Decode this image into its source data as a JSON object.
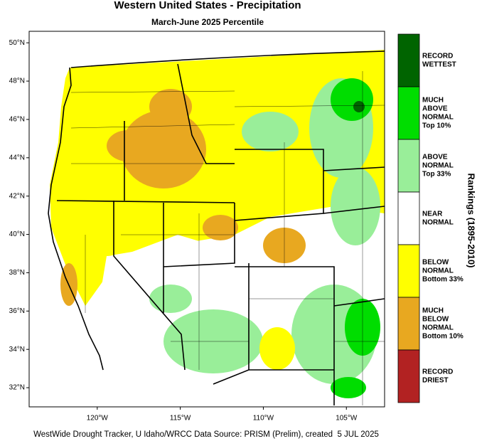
{
  "title": "Western United States - Precipitation",
  "subtitle": "March-June 2025 Percentile",
  "map": {
    "xlim": [
      -124.1,
      -102.7
    ],
    "ylim": [
      31,
      50.6
    ],
    "xticks": [
      {
        "value": -120,
        "label": "120°W"
      },
      {
        "value": -115,
        "label": "115°W"
      },
      {
        "value": -110,
        "label": "110°W"
      },
      {
        "value": -105,
        "label": "105°W"
      }
    ],
    "yticks": [
      {
        "value": 32,
        "label": "32°N"
      },
      {
        "value": 34,
        "label": "34°N"
      },
      {
        "value": 36,
        "label": "36°N"
      },
      {
        "value": 38,
        "label": "38°N"
      },
      {
        "value": 40,
        "label": "40°N"
      },
      {
        "value": 42,
        "label": "42°N"
      },
      {
        "value": 44,
        "label": "44°N"
      },
      {
        "value": 46,
        "label": "46°N"
      },
      {
        "value": 48,
        "label": "48°N"
      },
      {
        "value": 50,
        "label": "50°N"
      }
    ]
  },
  "legend": {
    "title": "Rankings (1895-2010)",
    "entries": [
      {
        "lines": [
          "RECORD",
          "WETTEST"
        ],
        "color": "#006400"
      },
      {
        "lines": [
          "MUCH",
          "ABOVE",
          "NORMAL",
          "Top 10%"
        ],
        "color": "#00dd00"
      },
      {
        "lines": [
          "ABOVE",
          "NORMAL",
          "Top 33%"
        ],
        "color": "#99ee99"
      },
      {
        "lines": [
          "NEAR",
          "NORMAL"
        ],
        "color": "#ffffff"
      },
      {
        "lines": [
          "BELOW",
          "NORMAL",
          "Bottom 33%"
        ],
        "color": "#ffff00"
      },
      {
        "lines": [
          "MUCH",
          "BELOW",
          "NORMAL",
          "Bottom 10%"
        ],
        "color": "#e8a820"
      },
      {
        "lines": [
          "RECORD",
          "DRIEST"
        ],
        "color": "#b22222"
      }
    ]
  },
  "footer": "WestWide Drought Tracker, U Idaho/WRCC Data Source: PRISM (Prelim), created  5 JUL 2025"
}
